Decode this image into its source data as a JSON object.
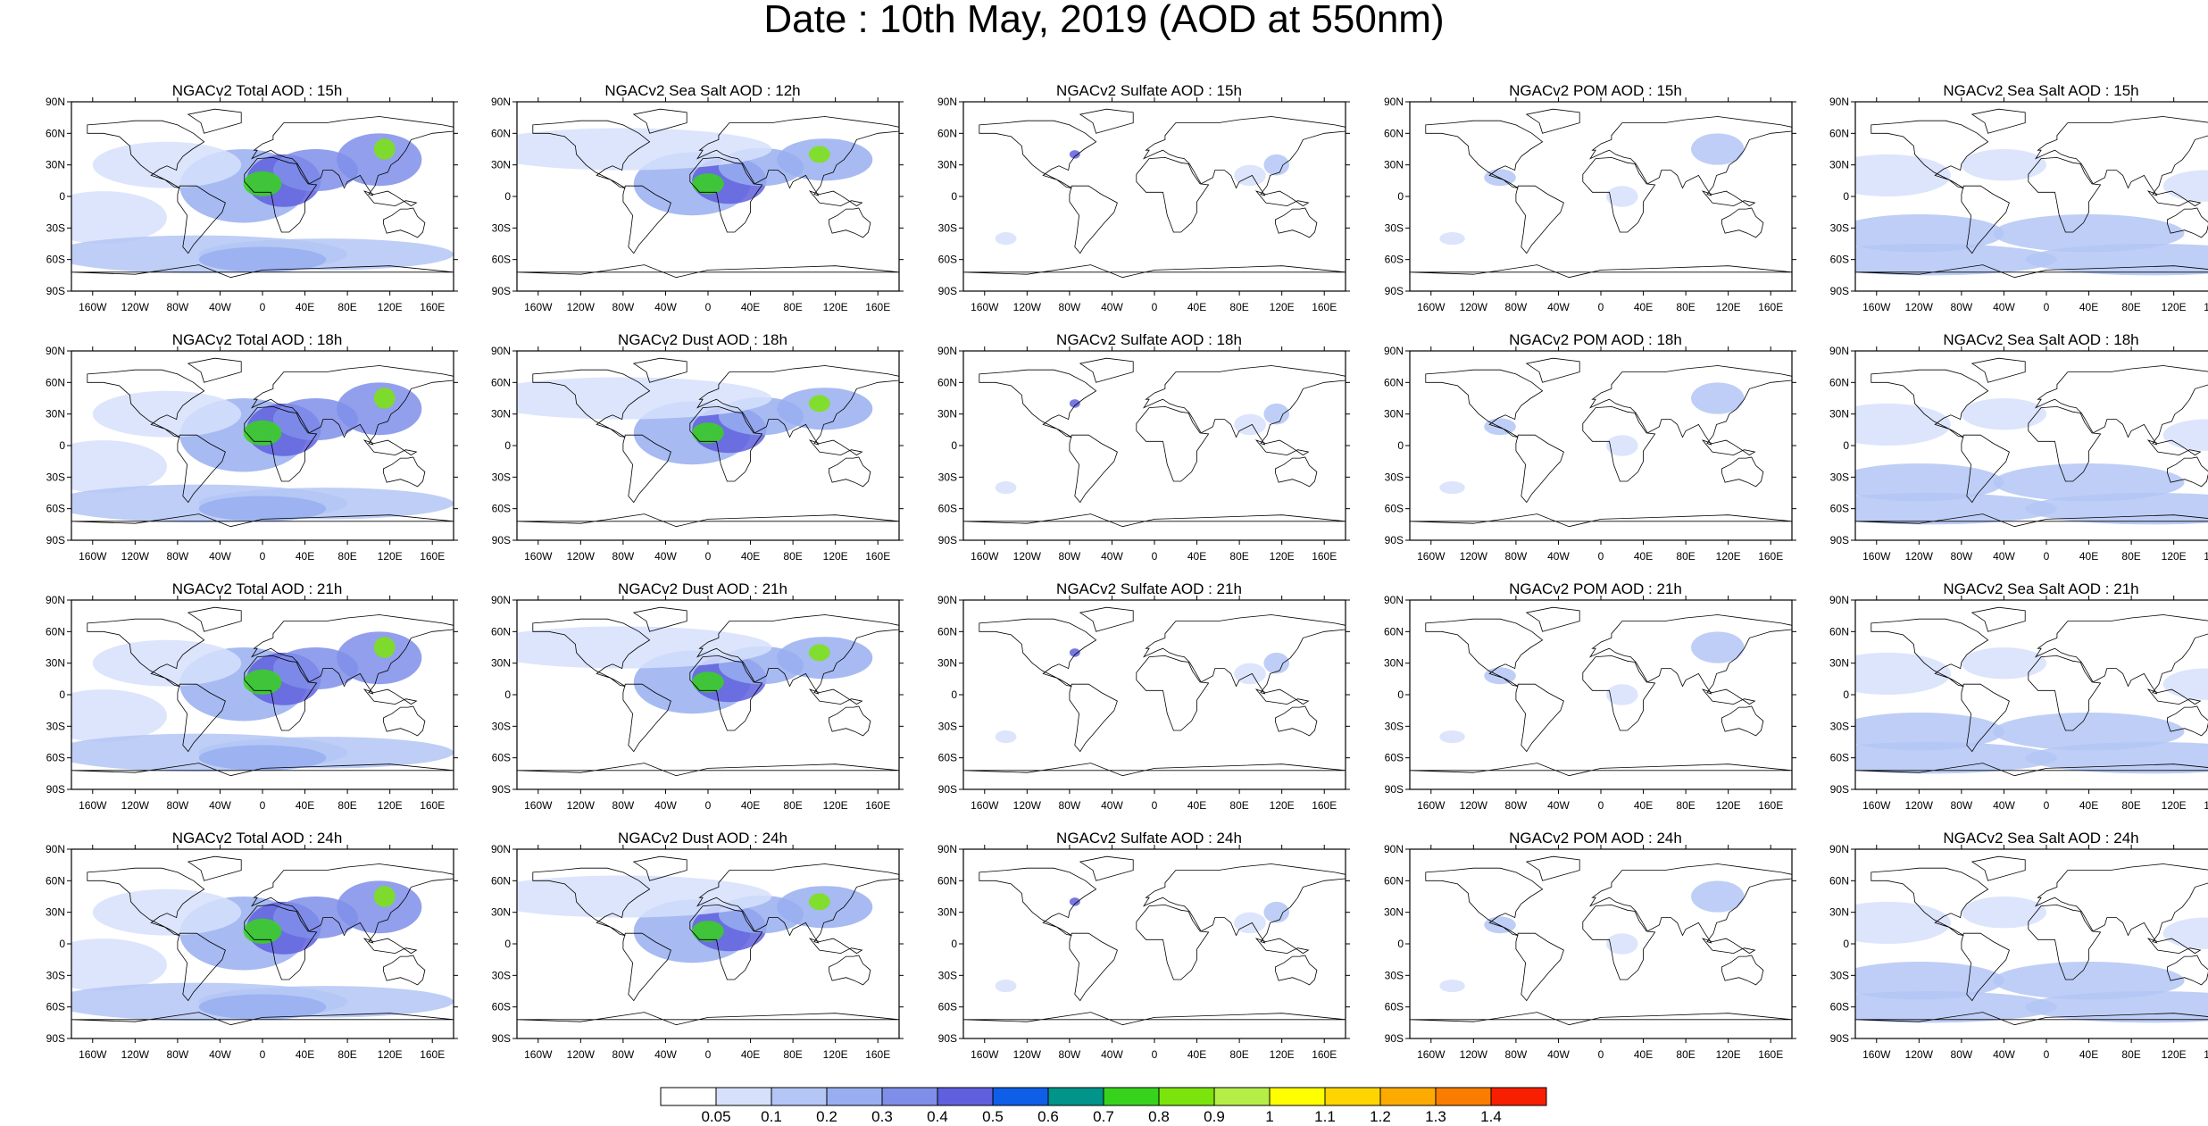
{
  "title": "Date : 10th May, 2019 (AOD at 550nm)",
  "lat_ticks": [
    "90N",
    "60N",
    "30N",
    "0",
    "30S",
    "60S",
    "90S"
  ],
  "lon_ticks": [
    "160W",
    "120W",
    "80W",
    "40W",
    "0",
    "40E",
    "80E",
    "120E",
    "160E"
  ],
  "lat_values": [
    90,
    60,
    30,
    0,
    -30,
    -60,
    -90
  ],
  "lon_values": [
    -160,
    -120,
    -80,
    -40,
    0,
    40,
    80,
    120,
    160
  ],
  "rows": [
    [
      "NGACv2 Total AOD : 15h",
      "NGACv2 Sea Salt  AOD : 12h",
      "NGACv2 Sulfate AOD : 15h",
      "NGACv2 POM AOD : 15h",
      "NGACv2 Sea Salt  AOD : 15h"
    ],
    [
      "NGACv2 Total AOD : 18h",
      "NGACv2 Dust AOD : 18h",
      "NGACv2 Sulfate AOD : 18h",
      "NGACv2 POM AOD : 18h",
      "NGACv2 Sea Salt  AOD : 18h"
    ],
    [
      "NGACv2 Total AOD : 21h",
      "NGACv2 Dust AOD : 21h",
      "NGACv2 Sulfate AOD : 21h",
      "NGACv2 POM AOD : 21h",
      "NGACv2 Sea Salt  AOD : 21h"
    ],
    [
      "NGACv2 Total AOD : 24h",
      "NGACv2 Dust AOD : 24h",
      "NGACv2 Sulfate AOD : 24h",
      "NGACv2 POM AOD : 24h",
      "NGACv2 Sea Salt  AOD : 24h"
    ]
  ],
  "column_fields": [
    "total",
    "dust_or_seasalt",
    "sulfate",
    "pom",
    "seasalt"
  ],
  "colorbar": {
    "colors": [
      "#ffffff",
      "#d6e0fb",
      "#b3c6f5",
      "#98aef0",
      "#7f8ee9",
      "#5f60dd",
      "#0e5ee8",
      "#00948a",
      "#37d31c",
      "#7ae40c",
      "#b6ee48",
      "#ffff00",
      "#fed500",
      "#fdab00",
      "#fa7d00",
      "#f81e00"
    ],
    "labels": [
      "0.05",
      "0.1",
      "0.2",
      "0.3",
      "0.4",
      "0.5",
      "0.6",
      "0.7",
      "0.8",
      "0.9",
      "1",
      "1.1",
      "1.2",
      "1.3",
      "1.4"
    ]
  }
}
